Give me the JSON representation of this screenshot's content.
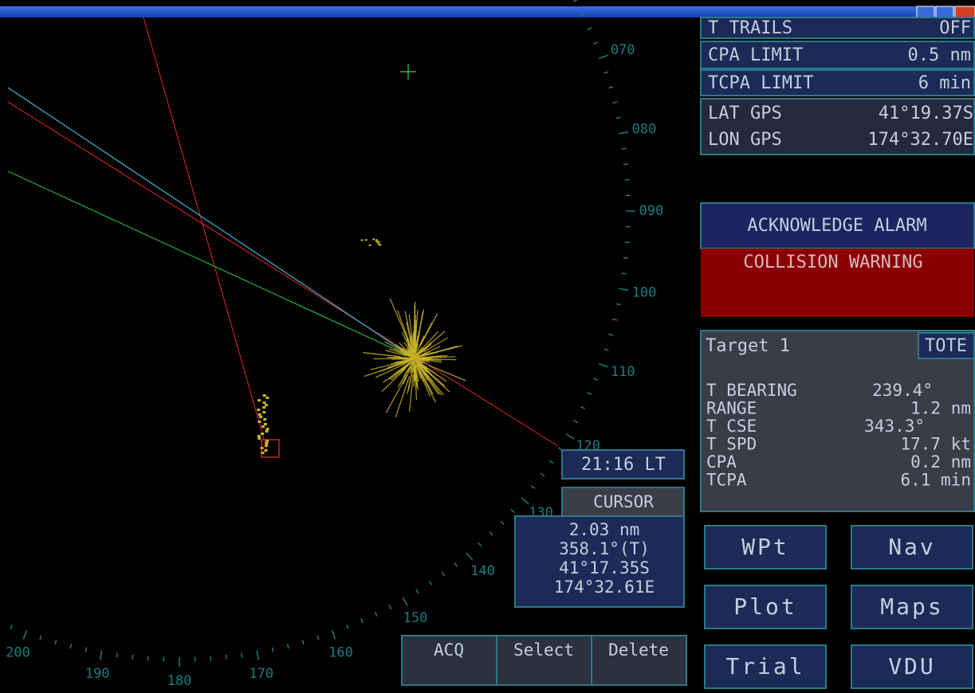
{
  "status_rows": [
    {
      "label": "T TRAILS",
      "value": "OFF"
    },
    {
      "label": "CPA LIMIT",
      "value": "0.5 nm"
    },
    {
      "label": "TCPA LIMIT",
      "value": "6 min"
    }
  ],
  "gps": [
    {
      "label": "LAT GPS",
      "value": "41°19.37S"
    },
    {
      "label": "LON GPS",
      "value": "174°32.70E"
    }
  ],
  "alarm": {
    "button": "ACKNOWLEDGE ALARM",
    "warning": "COLLISION WARNING"
  },
  "target": {
    "title": "Target  1",
    "mode": "TOTE",
    "rows": [
      {
        "label": "T BEARING",
        "value": "239.4°"
      },
      {
        "label": "RANGE",
        "value": "1.2 nm"
      },
      {
        "label": "T CSE",
        "value": "343.3°"
      },
      {
        "label": "T SPD",
        "value": "17.7 kt"
      },
      {
        "label": "CPA",
        "value": "0.2 nm"
      },
      {
        "label": "TCPA",
        "value": "6.1 min"
      }
    ]
  },
  "clock": "21:16 LT",
  "cursor": {
    "title": "CURSOR",
    "lines": [
      "2.03 nm",
      "358.1°(T)",
      "41°17.35S",
      "174°32.61E"
    ]
  },
  "target_buttons": [
    "ACQ",
    "Select",
    "Delete"
  ],
  "menu_buttons": [
    "WPt",
    "Nav",
    "Plot",
    "Maps",
    "Trial",
    "VDU"
  ],
  "bearing_scale": [
    "070",
    "080",
    "090",
    "100",
    "110",
    "120",
    "130",
    "140",
    "150",
    "160",
    "170",
    "180",
    "190",
    "200"
  ]
}
